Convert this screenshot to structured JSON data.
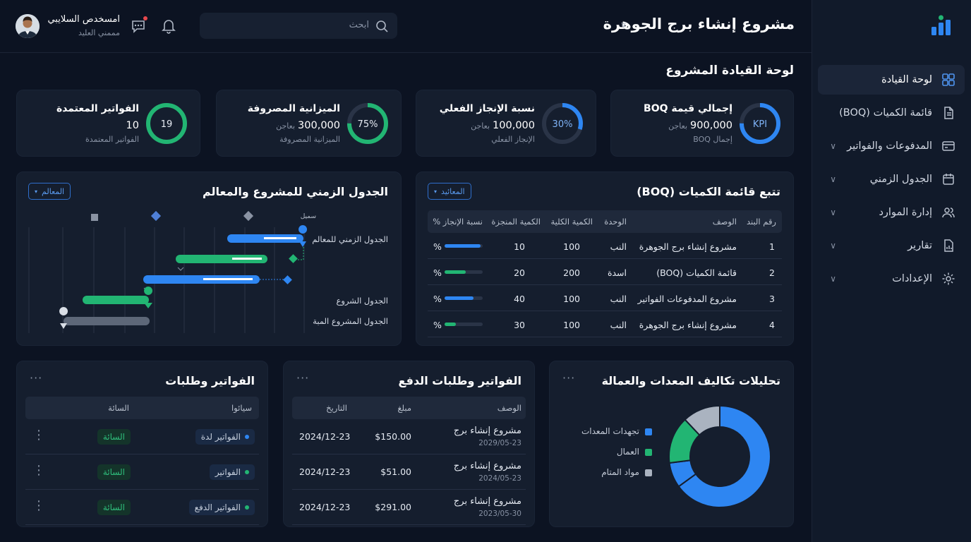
{
  "header": {
    "project_title": "مشروع إنشاء برج الجوهرة",
    "search_placeholder": "ابحث",
    "user_name": "امسخدص السلايبي",
    "user_role": "مممني العليد"
  },
  "page_title": "لوحة القيادة المشروع",
  "sidebar": {
    "items": [
      {
        "label": "لوحة القيادة"
      },
      {
        "label": "قائمة الكميات (BOQ)"
      },
      {
        "label": "المدفوعات والفواتير"
      },
      {
        "label": "الجدول الزمني"
      },
      {
        "label": "إدارة الموارد"
      },
      {
        "label": "تقارير"
      },
      {
        "label": "الإعدادات"
      }
    ]
  },
  "kpis": [
    {
      "title": "إجمالي قيمة BOQ",
      "value": "900,000",
      "unit": "بعاجن",
      "sub": "إجمال BOQ",
      "ring": "KPI",
      "percent": 75,
      "color": "#2e86f2"
    },
    {
      "title": "نسبة الإنجاز الفعلي",
      "value": "100,000",
      "unit": "بعاجن",
      "sub": "الإنجاز الفعلي",
      "ring": "30%",
      "percent": 30,
      "color": "#2e86f2"
    },
    {
      "title": "الميزانية المصروفة",
      "value": "300,000",
      "unit": "بعاجن",
      "sub": "الميزانية المصروفة",
      "ring": "75%",
      "percent": 75,
      "color": "#22b573"
    },
    {
      "title": "الفواتير المعتمدة",
      "value": "10",
      "unit": "",
      "sub": "الفواتير المعتمدة",
      "ring": "19",
      "percent": 100,
      "color": "#22b573"
    }
  ],
  "boq": {
    "title": "تتبع قائمة الكميات (BOQ)",
    "dropdown": "المعائيد",
    "headers": [
      "رقم البند",
      "الوصف",
      "الوحدة",
      "الكمية الكلية",
      "الكمية المنجزة",
      "نسبة الإنجاز %"
    ],
    "rows": [
      {
        "no": "1",
        "desc": "مشروع إنشاء برج الجوهرة",
        "unit": "النب",
        "total": "100",
        "done": "10",
        "pct": "%",
        "progress": 95,
        "color": "#2e86f2"
      },
      {
        "no": "2",
        "desc": "قائمة الكميات (BOQ)",
        "unit": "اسدة",
        "total": "200",
        "done": "20",
        "pct": "%",
        "progress": 55,
        "color": "#22b573"
      },
      {
        "no": "3",
        "desc": "مشروع المدفوعات الفواتير",
        "unit": "النب",
        "total": "100",
        "done": "40",
        "pct": "%",
        "progress": 75,
        "color": "#2e86f2"
      },
      {
        "no": "4",
        "desc": "مشروع إنشاء برج الجوهرة",
        "unit": "النب",
        "total": "100",
        "done": "30",
        "pct": "%",
        "progress": 30,
        "color": "#22b573"
      }
    ]
  },
  "gantt": {
    "title": "الجدول الزمني للمشروع والمعالم",
    "dropdown": "المعالم",
    "milestone_label": "سميل",
    "labels": [
      "الجدول الزمني للمعالم",
      "الجدول الشروع",
      "الجدول المشروع المبة"
    ]
  },
  "costs": {
    "title": "تحليلات تكاليف المعدات والعمالة",
    "legend": [
      {
        "label": "تجهدات المعدات",
        "color": "#2e86f2"
      },
      {
        "label": "العمال",
        "color": "#22b573"
      },
      {
        "label": "مواد المتام",
        "color": "#aab3c0"
      }
    ],
    "shares": [
      65,
      8,
      15,
      12
    ]
  },
  "payments": {
    "title": "الفواتير وطلبات الدفع",
    "headers": [
      "الوصف",
      "مبلغ",
      "التاريخ"
    ],
    "rows": [
      {
        "desc": "مشروع إنشاء برج",
        "sub": "2029/05-23",
        "amount": "$150.00",
        "date": "2024/12-23"
      },
      {
        "desc": "مشروع إنشاء برج",
        "sub": "2024/05-23",
        "amount": "$51.00",
        "date": "2024/12-23"
      },
      {
        "desc": "مشروع إنشاء برج",
        "sub": "2023/05-30",
        "amount": "$291.00",
        "date": "2024/12-23"
      }
    ]
  },
  "invoices": {
    "title": "الفواتير وطلبات",
    "headers": [
      "سيائوا",
      "السائة"
    ],
    "rows": [
      {
        "name": "الفواتير لدة",
        "dot": "#2e86f2",
        "status": "السائة"
      },
      {
        "name": "الفواتير",
        "dot": "#22b573",
        "status": "السائة"
      },
      {
        "name": "الفواتير الدفع",
        "dot": "#22b573",
        "status": "السائة"
      }
    ]
  },
  "more_glyph": "···",
  "kebab_glyph": "⋮"
}
